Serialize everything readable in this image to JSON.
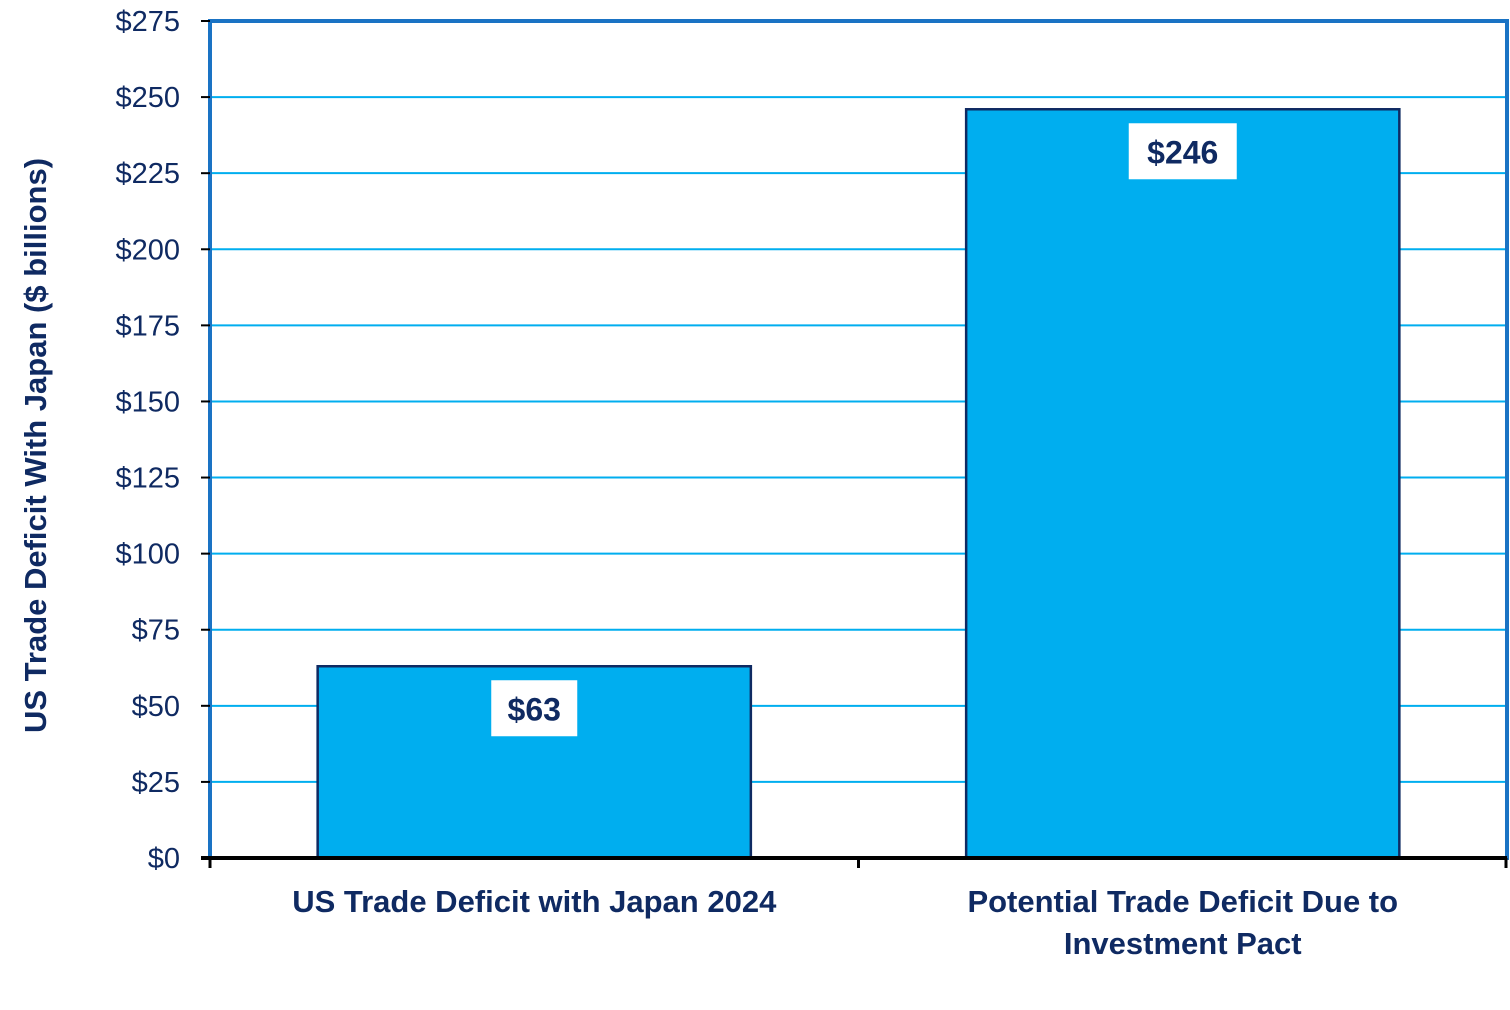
{
  "chart_data": {
    "type": "bar",
    "categories": [
      [
        "US Trade Deficit with Japan 2024"
      ],
      [
        "Potential Trade Deficit Due to",
        "Investment Pact"
      ]
    ],
    "values": [
      63,
      246
    ],
    "data_labels": [
      "$63",
      "$246"
    ],
    "title": "",
    "xlabel": "",
    "ylabel": "US Trade Deficit With Japan ($ billions)",
    "ylim": [
      0,
      275
    ],
    "yticks": [
      0,
      25,
      50,
      75,
      100,
      125,
      150,
      175,
      200,
      225,
      250,
      275
    ],
    "ytick_labels": [
      "$0",
      "$25",
      "$50",
      "$75",
      "$100",
      "$125",
      "$150",
      "$175",
      "$200",
      "$225",
      "$250",
      "$275"
    ],
    "grid": true,
    "legend": "none",
    "colors": {
      "bar_fill": "#00aeef",
      "bar_stroke": "#0f2a62",
      "gridline": "#00aeef",
      "plot_border": "#1a73c4",
      "text": "#0f2a62",
      "axis": "#000000"
    }
  }
}
